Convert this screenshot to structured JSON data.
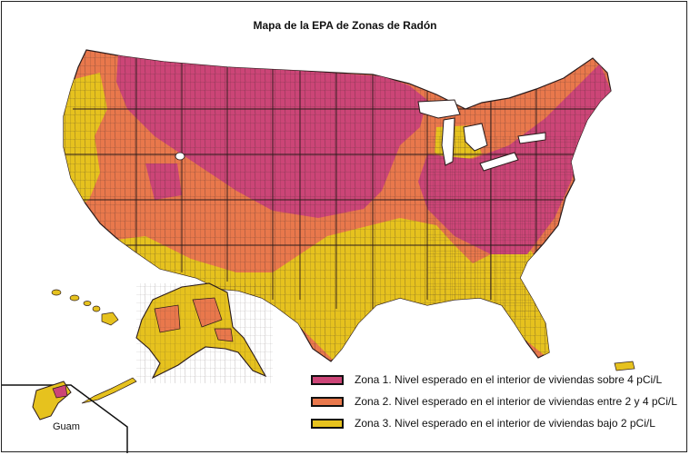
{
  "title": "Mapa de la EPA de Zonas de Radón",
  "colors": {
    "zone1": "#cc4577",
    "zone2": "#e9784c",
    "zone3": "#e6c21e",
    "border": "#3a2a2a"
  },
  "legend": [
    {
      "label": "Zona 1. Nivel esperado en el interior de viviendas sobre 4 pCi/L",
      "color": "#cc4577"
    },
    {
      "label": "Zona 2. Nivel esperado en el interior de viviendas entre 2 y 4 pCi/L",
      "color": "#e9784c"
    },
    {
      "label": "Zona 3. Nivel esperado en el interior de viviendas bajo 2 pCi/L",
      "color": "#e6c21e"
    }
  ],
  "inset": {
    "guam_label": "Guam"
  }
}
